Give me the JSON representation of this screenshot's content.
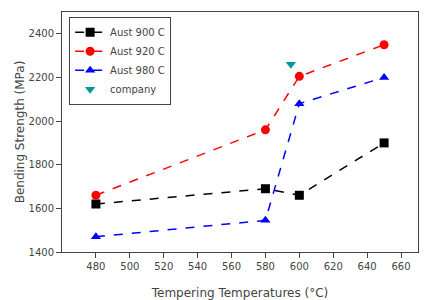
{
  "chart_data": {
    "type": "line",
    "xlabel": "Tempering Temperatures (°C)",
    "ylabel": "Bending Strength (MPa)",
    "series": [
      {
        "name": "Aust 900 C",
        "color": "black",
        "marker": "square",
        "line_style": "dashed",
        "x": [
          480,
          580,
          600,
          650
        ],
        "values": [
          1620,
          1690,
          1660,
          1900
        ]
      },
      {
        "name": "Aust 920 C",
        "color": "red",
        "marker": "circle",
        "line_style": "dashed",
        "x": [
          480,
          580,
          600,
          650
        ],
        "values": [
          1660,
          1960,
          2205,
          2350
        ]
      },
      {
        "name": "Aust 980 C",
        "color": "blue",
        "marker": "triangle-up",
        "line_style": "dashed",
        "x": [
          480,
          580,
          600,
          650
        ],
        "values": [
          1470,
          1545,
          2080,
          2200
        ]
      },
      {
        "name": "company",
        "color": "#009999",
        "marker": "triangle-down",
        "line_style": "none",
        "x": [
          595
        ],
        "values": [
          2260
        ]
      }
    ],
    "xlim": [
      460,
      670
    ],
    "ylim": [
      1400,
      2500
    ],
    "xticks": [
      480,
      500,
      520,
      540,
      560,
      580,
      600,
      620,
      640,
      660
    ],
    "yticks": [
      1400,
      1600,
      1800,
      2000,
      2200,
      2400
    ],
    "grid": false,
    "legend": "upper left"
  }
}
